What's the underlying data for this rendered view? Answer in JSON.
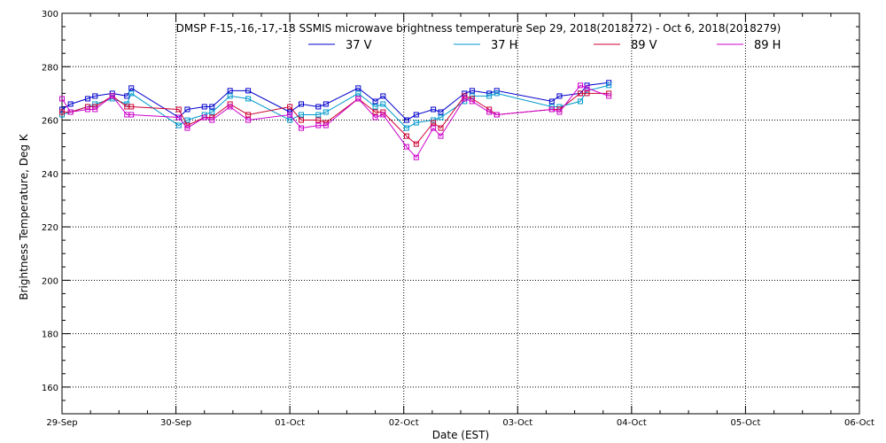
{
  "chart_data": {
    "type": "line",
    "title": "DMSP F-15,-16,-17,-18 SSMIS microwave brightness temperature Sep 29, 2018(2018272) - Oct  6, 2018(2018279)",
    "xlabel": "Date (EST)",
    "ylabel": "Brightness Temperature, Deg K",
    "xlim": [
      "2018-09-29T00:00",
      "2018-10-06T00:00"
    ],
    "ylim": [
      150,
      300
    ],
    "x_ticks": [
      "29-Sep",
      "30-Sep",
      "01-Oct",
      "02-Oct",
      "03-Oct",
      "04-Oct",
      "05-Oct",
      "06-Oct"
    ],
    "y_ticks": [
      160,
      180,
      200,
      220,
      240,
      260,
      280,
      300
    ],
    "grid": true,
    "legend_position": "top-center",
    "series": [
      {
        "name": "37 V",
        "color": "#0000cc",
        "points": [
          [
            "2018-09-29T00:00",
            264
          ],
          [
            "2018-09-29T01:48",
            266
          ],
          [
            "2018-09-29T05:24",
            268
          ],
          [
            "2018-09-29T06:57",
            269
          ],
          [
            "2018-09-29T10:36",
            270
          ],
          [
            "2018-09-29T13:40",
            269
          ],
          [
            "2018-09-29T14:36",
            272
          ],
          [
            "2018-09-30T00:36",
            261
          ],
          [
            "2018-09-30T02:24",
            264
          ],
          [
            "2018-09-30T06:00",
            265
          ],
          [
            "2018-09-30T07:36",
            265
          ],
          [
            "2018-09-30T11:24",
            271
          ],
          [
            "2018-09-30T15:13",
            271
          ],
          [
            "2018-10-01T00:00",
            263
          ],
          [
            "2018-10-01T02:24",
            266
          ],
          [
            "2018-10-01T06:00",
            265
          ],
          [
            "2018-10-01T07:36",
            266
          ],
          [
            "2018-10-01T14:24",
            272
          ],
          [
            "2018-10-01T18:00",
            267
          ],
          [
            "2018-10-01T19:38",
            269
          ],
          [
            "2018-10-02T00:36",
            260
          ],
          [
            "2018-10-02T02:38",
            262
          ],
          [
            "2018-10-02T06:14",
            264
          ],
          [
            "2018-10-02T07:48",
            263
          ],
          [
            "2018-10-02T12:48",
            270
          ],
          [
            "2018-10-02T14:24",
            271
          ],
          [
            "2018-10-02T18:00",
            270
          ],
          [
            "2018-10-02T19:36",
            271
          ],
          [
            "2018-10-03T07:12",
            267
          ],
          [
            "2018-10-03T08:48",
            269
          ],
          [
            "2018-10-03T13:12",
            270
          ],
          [
            "2018-10-03T14:36",
            273
          ],
          [
            "2018-10-03T19:12",
            274
          ]
        ]
      },
      {
        "name": "37 H",
        "color": "#0099cc",
        "points": [
          [
            "2018-09-29T00:00",
            262
          ],
          [
            "2018-09-29T01:48",
            263
          ],
          [
            "2018-09-29T05:24",
            265
          ],
          [
            "2018-09-29T06:57",
            266
          ],
          [
            "2018-09-29T10:36",
            268
          ],
          [
            "2018-09-29T13:40",
            266
          ],
          [
            "2018-09-29T14:36",
            270
          ],
          [
            "2018-09-30T00:36",
            258
          ],
          [
            "2018-09-30T02:24",
            260
          ],
          [
            "2018-09-30T06:00",
            262
          ],
          [
            "2018-09-30T07:36",
            263
          ],
          [
            "2018-09-30T11:24",
            269
          ],
          [
            "2018-09-30T15:13",
            268
          ],
          [
            "2018-10-01T00:00",
            260
          ],
          [
            "2018-10-01T02:24",
            262
          ],
          [
            "2018-10-01T06:00",
            262
          ],
          [
            "2018-10-01T07:36",
            263
          ],
          [
            "2018-10-01T14:24",
            270
          ],
          [
            "2018-10-01T18:00",
            265
          ],
          [
            "2018-10-01T19:38",
            266
          ],
          [
            "2018-10-02T00:36",
            257
          ],
          [
            "2018-10-02T02:38",
            259
          ],
          [
            "2018-10-02T06:14",
            260
          ],
          [
            "2018-10-02T07:48",
            261
          ],
          [
            "2018-10-02T12:48",
            267
          ],
          [
            "2018-10-02T14:24",
            269
          ],
          [
            "2018-10-02T18:00",
            269
          ],
          [
            "2018-10-02T19:36",
            270
          ],
          [
            "2018-10-03T07:12",
            265
          ],
          [
            "2018-10-03T08:48",
            265
          ],
          [
            "2018-10-03T13:12",
            267
          ],
          [
            "2018-10-03T14:36",
            271
          ],
          [
            "2018-10-03T19:12",
            273
          ]
        ]
      },
      {
        "name": "89 V",
        "color": "#cc0033",
        "points": [
          [
            "2018-09-29T00:00",
            263
          ],
          [
            "2018-09-29T01:48",
            263
          ],
          [
            "2018-09-29T05:24",
            265
          ],
          [
            "2018-09-29T06:57",
            265
          ],
          [
            "2018-09-29T10:36",
            269
          ],
          [
            "2018-09-29T13:40",
            265
          ],
          [
            "2018-09-29T14:36",
            265
          ],
          [
            "2018-09-30T00:36",
            264
          ],
          [
            "2018-09-30T02:24",
            258
          ],
          [
            "2018-09-30T06:00",
            261
          ],
          [
            "2018-09-30T07:36",
            261
          ],
          [
            "2018-09-30T11:24",
            266
          ],
          [
            "2018-09-30T15:13",
            262
          ],
          [
            "2018-10-01T00:00",
            265
          ],
          [
            "2018-10-01T02:24",
            260
          ],
          [
            "2018-10-01T06:00",
            260
          ],
          [
            "2018-10-01T07:36",
            259
          ],
          [
            "2018-10-01T14:24",
            268
          ],
          [
            "2018-10-01T18:00",
            263
          ],
          [
            "2018-10-01T19:38",
            263
          ],
          [
            "2018-10-02T00:36",
            254
          ],
          [
            "2018-10-02T02:38",
            251
          ],
          [
            "2018-10-02T06:14",
            259
          ],
          [
            "2018-10-02T07:48",
            257
          ],
          [
            "2018-10-02T12:48",
            269
          ],
          [
            "2018-10-02T14:24",
            268
          ],
          [
            "2018-10-02T18:00",
            264
          ],
          [
            "2018-10-02T19:36",
            262
          ],
          [
            "2018-10-03T07:12",
            264
          ],
          [
            "2018-10-03T08:48",
            264
          ],
          [
            "2018-10-03T13:12",
            270
          ],
          [
            "2018-10-03T14:36",
            270
          ],
          [
            "2018-10-03T19:12",
            270
          ]
        ]
      },
      {
        "name": "89 H",
        "color": "#cc00cc",
        "points": [
          [
            "2018-09-29T00:00",
            268
          ],
          [
            "2018-09-29T01:48",
            263
          ],
          [
            "2018-09-29T05:24",
            264
          ],
          [
            "2018-09-29T06:57",
            264
          ],
          [
            "2018-09-29T10:36",
            269
          ],
          [
            "2018-09-29T13:40",
            262
          ],
          [
            "2018-09-29T14:36",
            262
          ],
          [
            "2018-09-30T00:36",
            261
          ],
          [
            "2018-09-30T02:24",
            257
          ],
          [
            "2018-09-30T06:00",
            261
          ],
          [
            "2018-09-30T07:36",
            260
          ],
          [
            "2018-09-30T11:24",
            265
          ],
          [
            "2018-09-30T15:13",
            260
          ],
          [
            "2018-10-01T00:00",
            262
          ],
          [
            "2018-10-01T02:24",
            257
          ],
          [
            "2018-10-01T06:00",
            258
          ],
          [
            "2018-10-01T07:36",
            258
          ],
          [
            "2018-10-01T14:24",
            268
          ],
          [
            "2018-10-01T18:00",
            261
          ],
          [
            "2018-10-01T19:38",
            262
          ],
          [
            "2018-10-02T00:36",
            250
          ],
          [
            "2018-10-02T02:38",
            246
          ],
          [
            "2018-10-02T06:14",
            257
          ],
          [
            "2018-10-02T07:48",
            254
          ],
          [
            "2018-10-02T12:48",
            268
          ],
          [
            "2018-10-02T14:24",
            267
          ],
          [
            "2018-10-02T18:00",
            263
          ],
          [
            "2018-10-02T19:36",
            262
          ],
          [
            "2018-10-03T07:12",
            264
          ],
          [
            "2018-10-03T08:48",
            263
          ],
          [
            "2018-10-03T13:12",
            273
          ],
          [
            "2018-10-03T14:36",
            272
          ],
          [
            "2018-10-03T19:12",
            269
          ]
        ]
      }
    ]
  }
}
